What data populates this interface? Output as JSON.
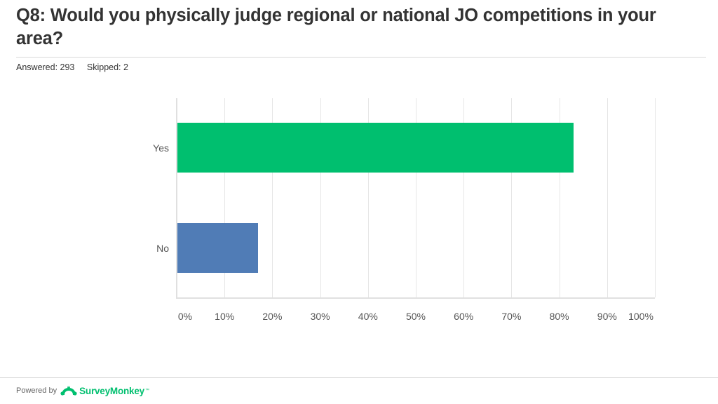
{
  "header": {
    "title": "Q8: Would you physically judge regional or national JO competitions in your area?",
    "answered": "Answered: 293",
    "skipped": "Skipped: 2"
  },
  "footer": {
    "powered_by": "Powered by",
    "brand": "SurveyMonkey",
    "brand_icon": "surveymonkey-logo-icon"
  },
  "colors": {
    "yes_bar": "#00bf6f",
    "no_bar": "#507cb6",
    "title": "#333333",
    "gridline": "#e6e6e6"
  },
  "chart_data": {
    "type": "bar",
    "orientation": "horizontal",
    "title": "Q8: Would you physically judge regional or national JO competitions in your area?",
    "categories": [
      "Yes",
      "No"
    ],
    "values": [
      82.94,
      17.06
    ],
    "unit": "%",
    "xlabel": "",
    "ylabel": "",
    "xlim": [
      0,
      100
    ],
    "x_ticks": [
      "0%",
      "10%",
      "20%",
      "30%",
      "40%",
      "50%",
      "60%",
      "70%",
      "80%",
      "90%",
      "100%"
    ],
    "grid": true,
    "legend": null,
    "bar_colors": [
      "#00bf6f",
      "#507cb6"
    ]
  }
}
